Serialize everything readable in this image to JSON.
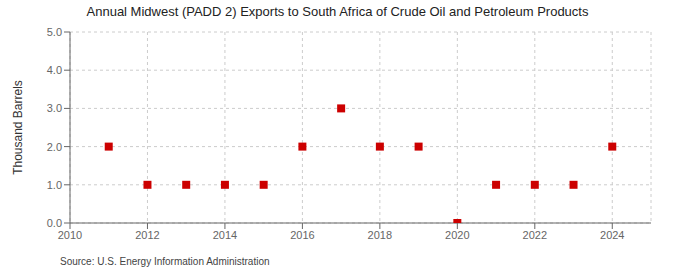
{
  "chart_data": {
    "type": "scatter",
    "title": "Annual Midwest (PADD 2) Exports to South Africa of Crude Oil and Petroleum Products",
    "y_label": "Thousand Barrels",
    "annotation": "Source: U.S. Energy Information Administration",
    "x": [
      2011,
      2012,
      2013,
      2014,
      2015,
      2016,
      2017,
      2018,
      2019,
      2020,
      2021,
      2022,
      2023,
      2024
    ],
    "values": [
      2,
      1,
      1,
      1,
      1,
      2,
      3,
      2,
      2,
      0,
      1,
      1,
      1,
      2
    ],
    "xlim": [
      2010,
      2025
    ],
    "xticks": [
      2010,
      2012,
      2014,
      2016,
      2018,
      2020,
      2022,
      2024
    ],
    "ylim": [
      0.0,
      5.0
    ],
    "yticks": [
      {
        "value": 0,
        "label": "0.0"
      },
      {
        "value": 1,
        "label": "1.0"
      },
      {
        "value": 2,
        "label": "2.0"
      },
      {
        "value": 3,
        "label": "3.0"
      },
      {
        "value": 4,
        "label": "4.0"
      },
      {
        "value": 5,
        "label": "5.0"
      }
    ],
    "color": "#cc0000",
    "marker": "square",
    "grid": true
  }
}
